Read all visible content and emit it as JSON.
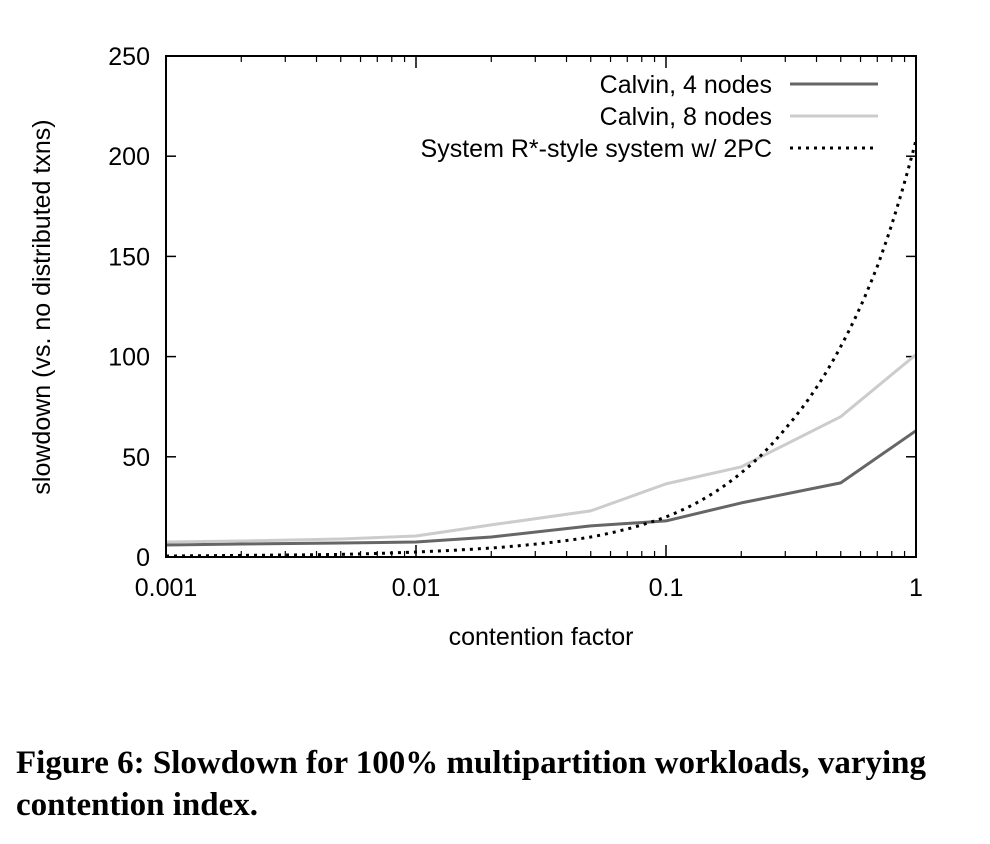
{
  "chart_data": {
    "type": "line",
    "xlabel": "contention factor",
    "ylabel": "slowdown (vs. no distributed txns)",
    "x_scale": "log",
    "xlim": [
      0.001,
      1
    ],
    "ylim": [
      0,
      250
    ],
    "x_ticks": [
      "0.001",
      "0.01",
      "0.1",
      "1"
    ],
    "y_ticks": [
      "0",
      "50",
      "100",
      "150",
      "200",
      "250"
    ],
    "grid": false,
    "legend_position": "top-right",
    "series": [
      {
        "name": "Calvin, 4 nodes",
        "color": "#666666",
        "style": "solid",
        "x": [
          0.001,
          0.002,
          0.005,
          0.01,
          0.02,
          0.05,
          0.1,
          0.2,
          0.5,
          1
        ],
        "y": [
          6,
          6.5,
          7,
          7.5,
          10,
          15.5,
          18,
          27,
          37,
          63
        ]
      },
      {
        "name": "Calvin, 8 nodes",
        "color": "#cccccc",
        "style": "solid",
        "x": [
          0.001,
          0.002,
          0.005,
          0.01,
          0.02,
          0.05,
          0.1,
          0.2,
          0.5,
          1
        ],
        "y": [
          7.5,
          8,
          9,
          10.5,
          16,
          23,
          36.5,
          45,
          70,
          101
        ]
      },
      {
        "name": "System R*-style system w/ 2PC",
        "color": "#000000",
        "style": "dotted",
        "x": [
          0.001,
          0.002,
          0.005,
          0.01,
          0.02,
          0.05,
          0.1,
          0.2,
          0.3,
          0.5,
          0.7,
          1
        ],
        "y": [
          0.5,
          0.8,
          1.3,
          2.5,
          4.5,
          10,
          20,
          42,
          64,
          105,
          145,
          208
        ]
      }
    ]
  },
  "caption": "Figure 6: Slowdown for 100% multipartition workloads, varying contention index."
}
